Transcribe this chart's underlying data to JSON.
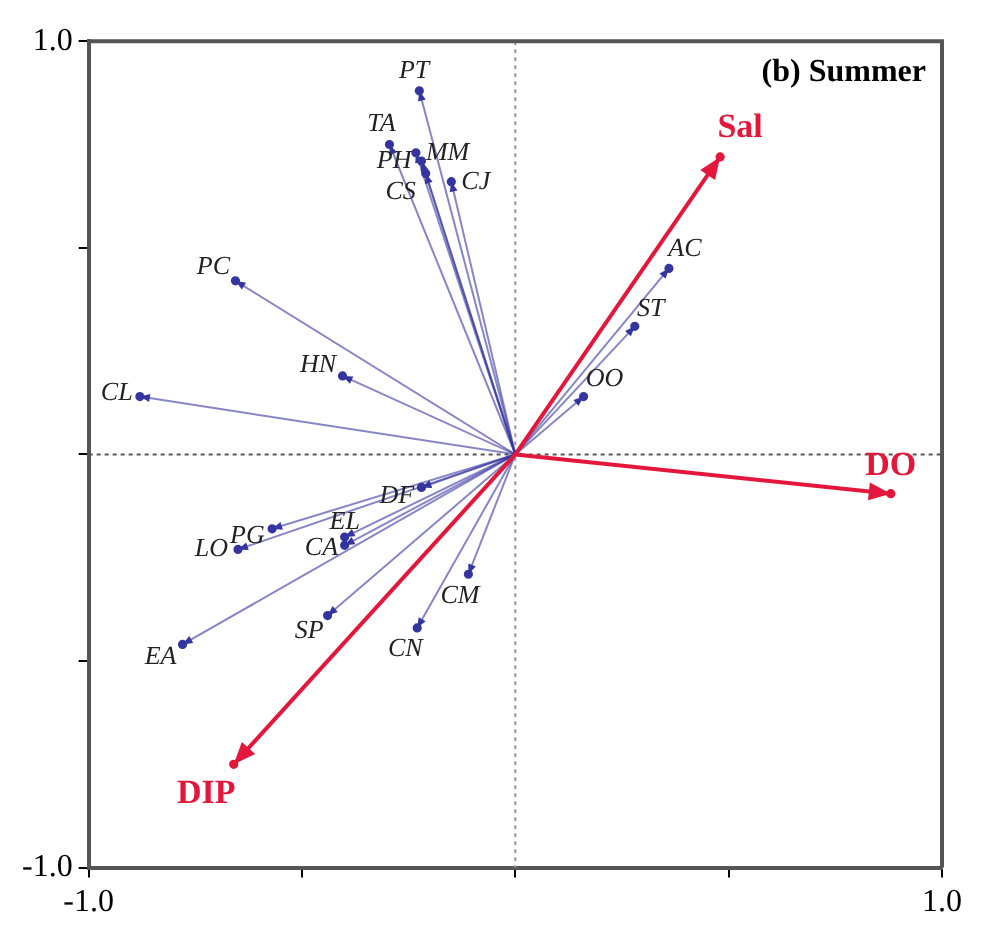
{
  "chart_data": {
    "type": "scatter",
    "title": "(b) Summer",
    "series": [
      {
        "color": "#3535a0",
        "x": [
          -0.225,
          -0.295,
          -0.233,
          -0.22,
          -0.21,
          -0.15,
          -0.656,
          -0.405,
          -0.88,
          0.36,
          0.28,
          0.16,
          -0.22,
          -0.57,
          -0.4,
          -0.4,
          -0.65,
          -0.11,
          -0.44,
          -0.23,
          -0.78
        ],
        "values": [
          0.88,
          0.75,
          0.73,
          0.71,
          0.68,
          0.66,
          0.42,
          0.19,
          0.14,
          0.45,
          0.31,
          0.14,
          -0.08,
          -0.18,
          -0.2,
          -0.22,
          -0.23,
          -0.29,
          -0.39,
          -0.42,
          -0.46
        ]
      },
      {
        "color": "#e3173c",
        "x": [
          0.48,
          0.88,
          -0.66
        ],
        "values": [
          0.72,
          -0.095,
          -0.75
        ]
      }
    ],
    "annotations": [
      {
        "text": "PT",
        "x": -0.225,
        "y": 0.88
      },
      {
        "text": "TA",
        "x": -0.295,
        "y": 0.75
      },
      {
        "text": "MM",
        "x": -0.233,
        "y": 0.73
      },
      {
        "text": "PH",
        "x": -0.22,
        "y": 0.71
      },
      {
        "text": "CS",
        "x": -0.21,
        "y": 0.68
      },
      {
        "text": "CJ",
        "x": -0.15,
        "y": 0.66
      },
      {
        "text": "PC",
        "x": -0.656,
        "y": 0.42
      },
      {
        "text": "HN",
        "x": -0.405,
        "y": 0.19
      },
      {
        "text": "CL",
        "x": -0.88,
        "y": 0.14
      },
      {
        "text": "AC",
        "x": 0.36,
        "y": 0.45
      },
      {
        "text": "ST",
        "x": 0.28,
        "y": 0.31
      },
      {
        "text": "OO",
        "x": 0.16,
        "y": 0.14
      },
      {
        "text": "DF",
        "x": -0.22,
        "y": -0.08
      },
      {
        "text": "PG",
        "x": -0.57,
        "y": -0.18
      },
      {
        "text": "CA",
        "x": -0.4,
        "y": -0.2
      },
      {
        "text": "EL",
        "x": -0.4,
        "y": -0.22
      },
      {
        "text": "LO",
        "x": -0.65,
        "y": -0.23
      },
      {
        "text": "CM",
        "x": -0.11,
        "y": -0.29
      },
      {
        "text": "SP",
        "x": -0.44,
        "y": -0.39
      },
      {
        "text": "CN",
        "x": -0.23,
        "y": -0.42
      },
      {
        "text": "EA",
        "x": -0.78,
        "y": -0.46
      },
      {
        "text": "Sal",
        "x": 0.48,
        "y": 0.72
      },
      {
        "text": "DO",
        "x": 0.88,
        "y": -0.095
      },
      {
        "text": "DIP",
        "x": -0.66,
        "y": -0.75
      }
    ],
    "xlim": [
      -1,
      1
    ],
    "ylim": [
      -1,
      1
    ],
    "xticks": [
      {
        "value": -1,
        "label": "-1.0"
      },
      {
        "value": -0.5,
        "label": null
      },
      {
        "value": 0,
        "label": null
      },
      {
        "value": 0.5,
        "label": null
      },
      {
        "value": 1,
        "label": "1.0"
      }
    ],
    "yticks": [
      {
        "value": -1,
        "label": "-1.0"
      },
      {
        "value": -0.5,
        "label": null
      },
      {
        "value": 0,
        "label": null
      },
      {
        "value": 0.5,
        "label": null
      },
      {
        "value": 1,
        "label": "1.0"
      }
    ],
    "ref_lines": [
      {
        "axis": "x",
        "value": 0,
        "line_style": "dotted",
        "color": "#9a9a9a"
      },
      {
        "axis": "y",
        "value": 0,
        "line_style": "dotted",
        "color": "#555555"
      }
    ],
    "grid": false,
    "legend": false
  }
}
